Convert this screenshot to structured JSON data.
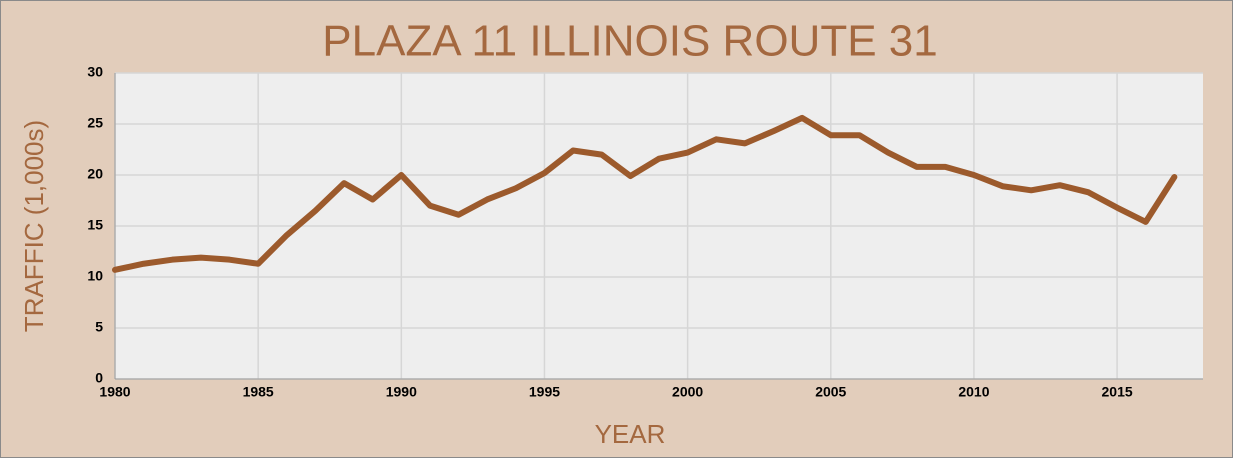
{
  "chart_data": {
    "type": "line",
    "title": "PLAZA 11 ILLINOIS ROUTE 31",
    "x_label": "YEAR",
    "y_label": "TRAFFIC (1,000s)",
    "x": [
      1980,
      1981,
      1982,
      1983,
      1984,
      1985,
      1986,
      1987,
      1988,
      1989,
      1990,
      1991,
      1992,
      1993,
      1994,
      1995,
      1996,
      1997,
      1998,
      1999,
      2000,
      2001,
      2002,
      2003,
      2004,
      2005,
      2006,
      2007,
      2008,
      2009,
      2010,
      2011,
      2012,
      2013,
      2014,
      2015,
      2016,
      2017
    ],
    "values": [
      10.7,
      11.3,
      11.7,
      11.9,
      11.7,
      11.3,
      14.1,
      16.5,
      19.2,
      17.6,
      20.0,
      17.0,
      16.1,
      17.6,
      18.7,
      20.2,
      22.4,
      22.0,
      19.9,
      21.6,
      22.2,
      23.5,
      23.1,
      24.3,
      25.6,
      23.9,
      23.9,
      22.2,
      20.8,
      20.8,
      20.0,
      18.9,
      18.5,
      19.0,
      18.3,
      16.8,
      15.4,
      19.8
    ],
    "color": "#9c5a2c",
    "xlim": [
      1980,
      2018
    ],
    "xticks": [
      1980,
      1985,
      1990,
      1995,
      2000,
      2005,
      2010,
      2015
    ],
    "ylim": [
      0,
      30
    ],
    "yticks": [
      0,
      5,
      10,
      15,
      20,
      25,
      30
    ],
    "grid": true
  }
}
